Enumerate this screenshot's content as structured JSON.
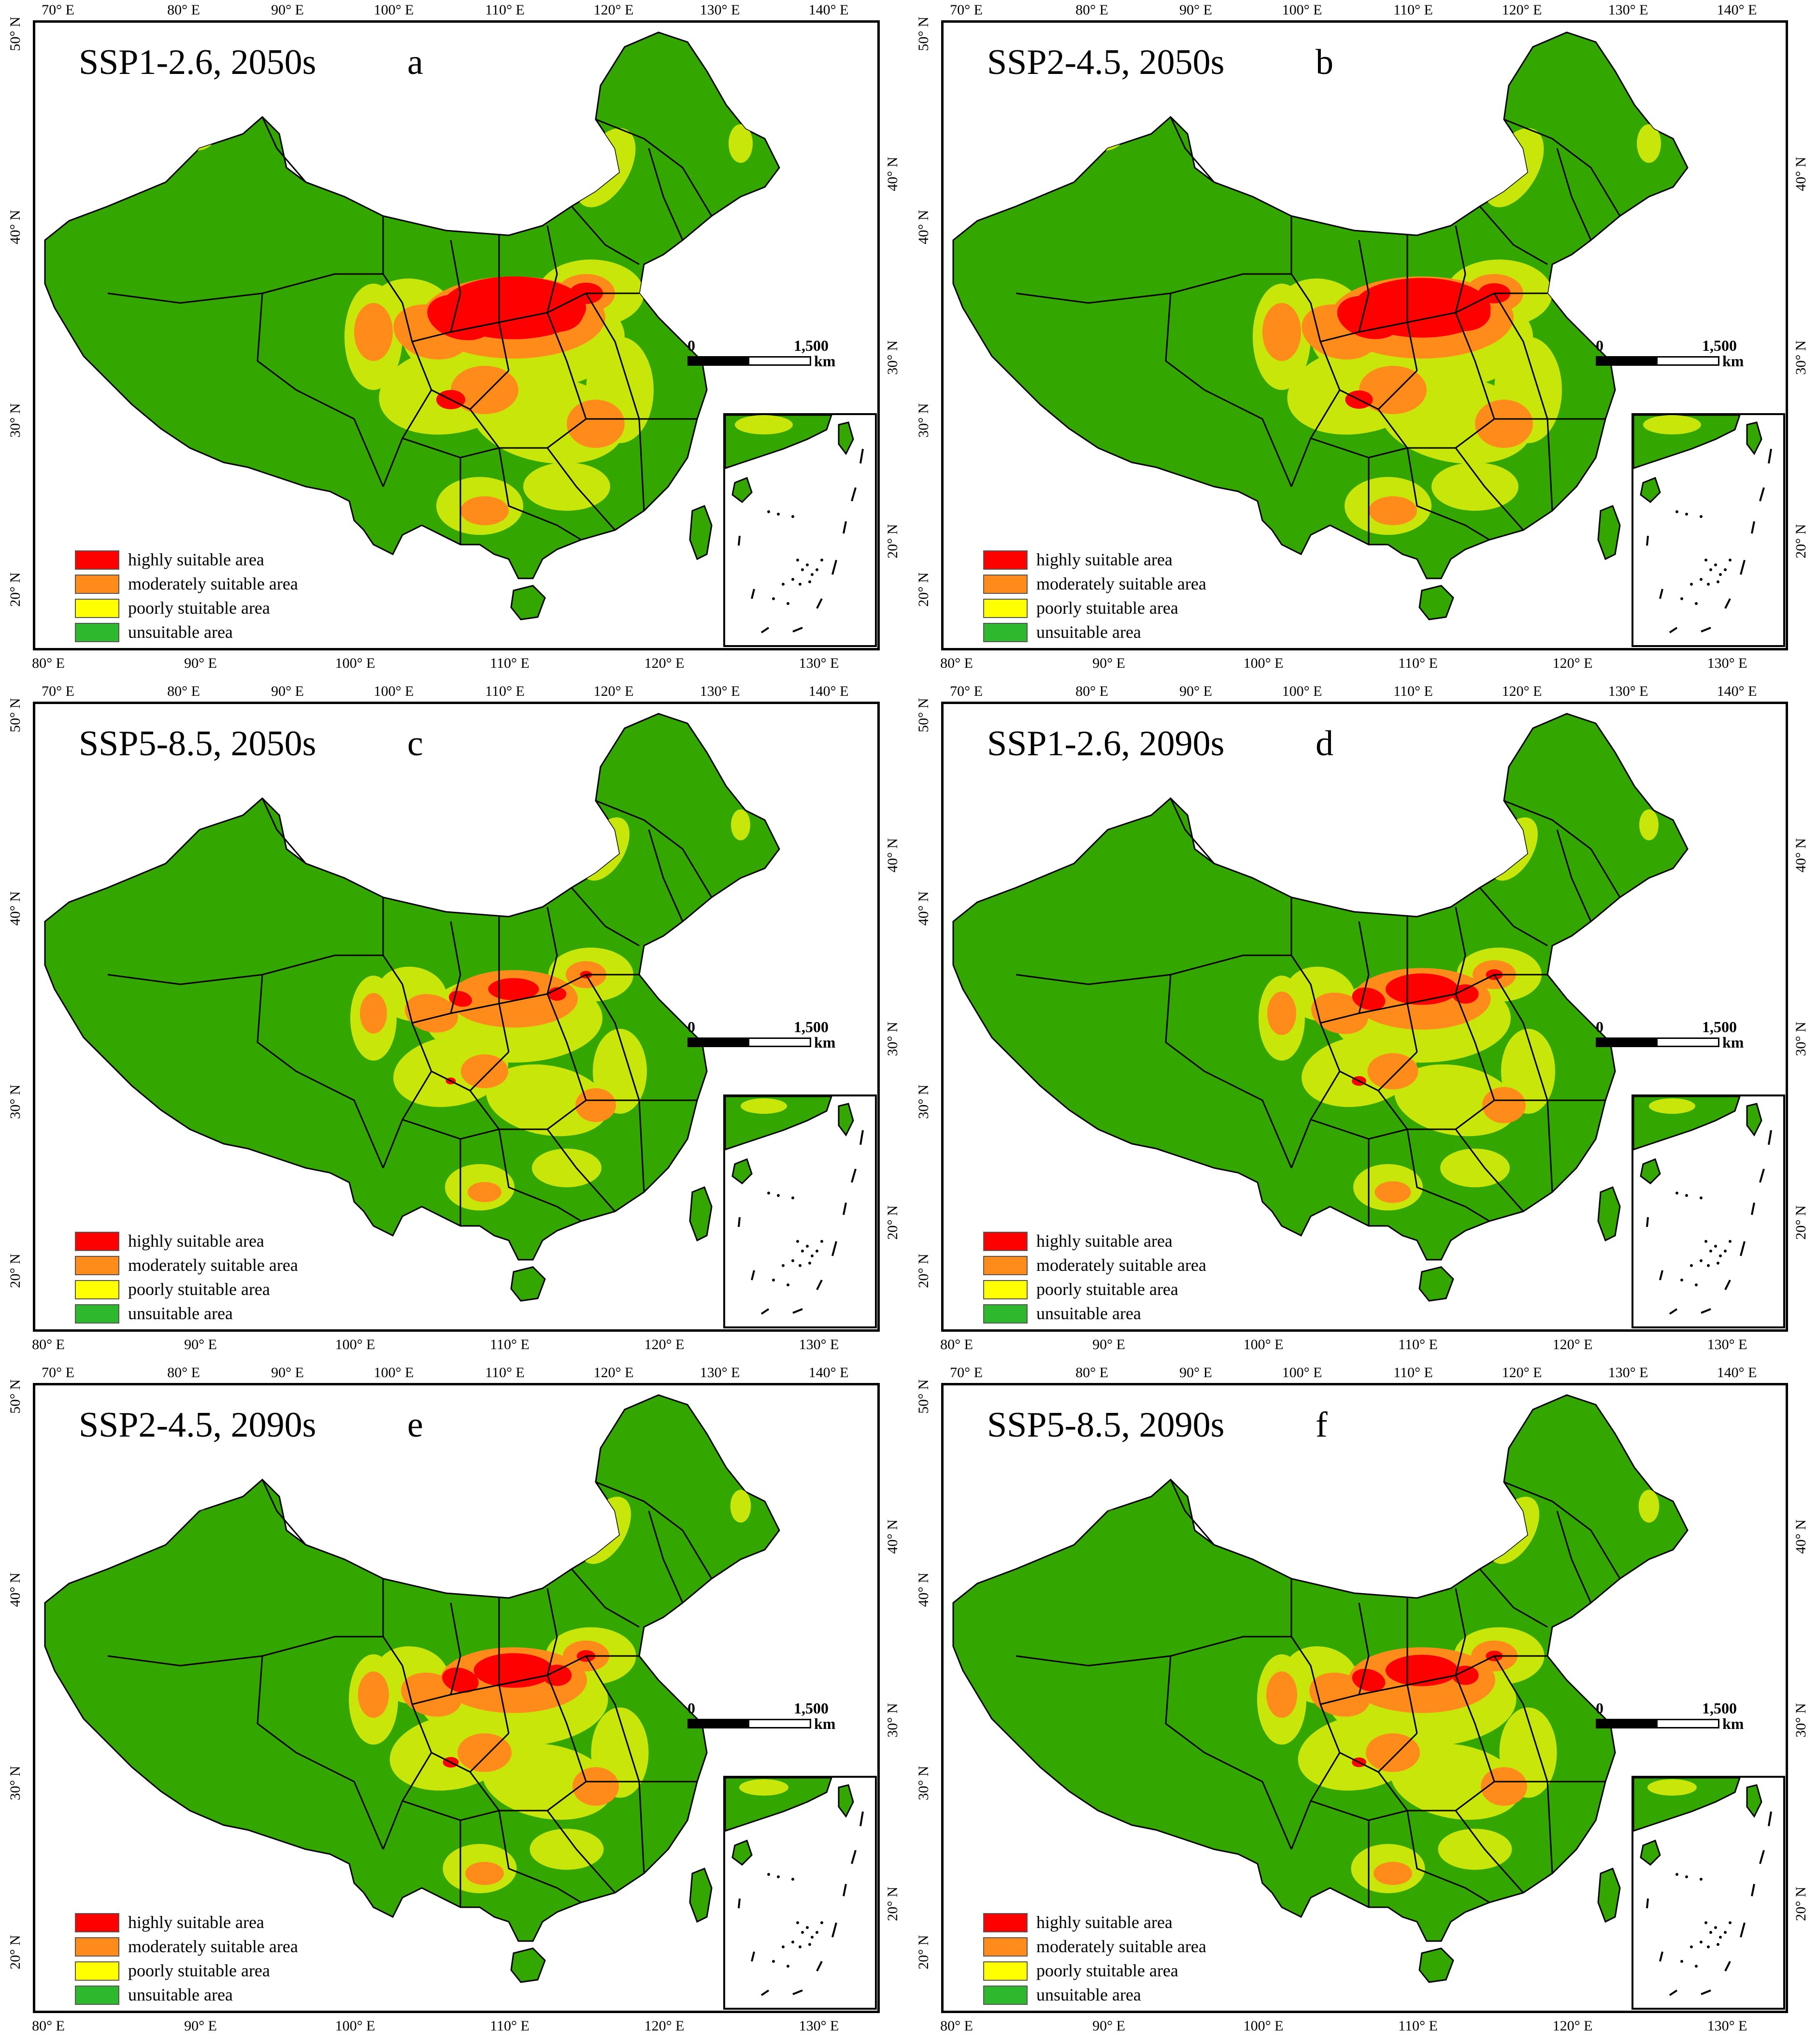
{
  "colors": {
    "highly": "#ff0000",
    "moderately": "#ff8c1a",
    "poorly": "#c8e60a",
    "poorly_swatch": "#ffff00",
    "unsuitable": "#33a600",
    "unsuitable_swatch": "#2eb82e",
    "border": "#000000"
  },
  "legend": [
    {
      "key": "highly",
      "label": "highly suitable area"
    },
    {
      "key": "moderately",
      "label": "moderately suitable area"
    },
    {
      "key": "poorly",
      "label": "poorly stuitable area"
    },
    {
      "key": "unsuitable",
      "label": "unsuitable area"
    }
  ],
  "top_ticks": [
    "70° E",
    "80° E",
    "90° E",
    "100° E",
    "110° E",
    "120° E",
    "130° E",
    "140° E"
  ],
  "bottom_ticks": [
    "80° E",
    "90° E",
    "100° E",
    "110° E",
    "120° E",
    "130° E"
  ],
  "left_lat_ticks": [
    "50° N",
    "40° N",
    "30° N",
    "20° N"
  ],
  "right_lat_ticks": [
    "40° N",
    "30° N",
    "20° N"
  ],
  "scalebar": {
    "zero": "0",
    "max": "1,500",
    "unit": "km"
  },
  "panels": [
    {
      "id": "a",
      "title": "SSP1-2.6, 2050s",
      "letter": "a",
      "highly": 1.0,
      "moderately": 1.0,
      "poorly": 1.0
    },
    {
      "id": "b",
      "title": "SSP2-4.5, 2050s",
      "letter": "b",
      "highly": 0.95,
      "moderately": 1.0,
      "poorly": 1.0
    },
    {
      "id": "c",
      "title": "SSP5-8.5, 2050s",
      "letter": "c",
      "highly": 0.35,
      "moderately": 0.7,
      "poorly": 0.8
    },
    {
      "id": "d",
      "title": "SSP1-2.6, 2090s",
      "letter": "d",
      "highly": 0.5,
      "moderately": 0.75,
      "poorly": 0.8
    },
    {
      "id": "e",
      "title": "SSP2-4.5, 2090s",
      "letter": "e",
      "highly": 0.55,
      "moderately": 0.8,
      "poorly": 0.85
    },
    {
      "id": "f",
      "title": "SSP5-8.5, 2090s",
      "letter": "f",
      "highly": 0.5,
      "moderately": 0.8,
      "poorly": 0.85
    }
  ]
}
